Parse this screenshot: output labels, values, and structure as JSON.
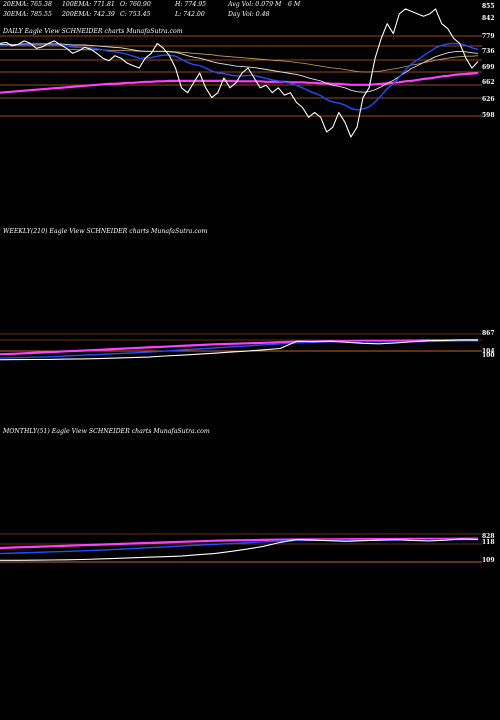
{
  "header": {
    "row1": [
      {
        "label": "20EMA: 765.38"
      },
      {
        "label": "100EMA: 771.81"
      },
      {
        "label": "O: 760.90"
      },
      {
        "label": "H: 774.95"
      },
      {
        "label": "Avg Vol: 0.079 M"
      }
    ],
    "row2": [
      {
        "label": "30EMA: 785.55"
      },
      {
        "label": "200EMA: 742.39"
      },
      {
        "label": "C: 753.45"
      },
      {
        "label": "L: 742.00"
      },
      {
        "label": "Day Vol: 0.48"
      }
    ],
    "row1_tail": "6  M",
    "watermark": "DAILY Eagle View SCHNEIDER charts MunafaSutra.com"
  },
  "colors": {
    "background": "#000000",
    "price": "#ffffff",
    "ema_fast": "#1f4fff",
    "ema_mid": "#e0e0e0",
    "ema_slow": "#c8a060",
    "ema_long": "#ff40ff",
    "level_line": "#c8602a"
  },
  "chart_data": [
    {
      "type": "line",
      "panel": "daily",
      "title": "",
      "y_ticks": [
        "855",
        "842",
        "779",
        "736",
        "699",
        "662",
        "626",
        "598"
      ],
      "ylim": [
        598,
        870
      ],
      "x": [
        0,
        1,
        2,
        3,
        4,
        5,
        6,
        7,
        8,
        9,
        10,
        11,
        12,
        13,
        14,
        15,
        16,
        17,
        18,
        19,
        20,
        21,
        22,
        23,
        24,
        25,
        26,
        27,
        28,
        29,
        30,
        31,
        32,
        33,
        34,
        35,
        36,
        37,
        38,
        39,
        40,
        41,
        42,
        43,
        44,
        45,
        46,
        47,
        48,
        49,
        50,
        51,
        52,
        53,
        54,
        55,
        56,
        57,
        58,
        59,
        60,
        61,
        62,
        63,
        64,
        65,
        66,
        67,
        68,
        69,
        70,
        71,
        72,
        73,
        74,
        75,
        76,
        77,
        78,
        79
      ],
      "series": [
        {
          "name": "",
          "key": "price",
          "values": [
            790,
            792,
            785,
            788,
            795,
            790,
            780,
            783,
            790,
            795,
            787,
            780,
            770,
            775,
            782,
            778,
            770,
            760,
            755,
            765,
            760,
            750,
            745,
            740,
            760,
            770,
            790,
            780,
            765,
            740,
            700,
            690,
            710,
            730,
            700,
            680,
            690,
            720,
            700,
            710,
            730,
            740,
            720,
            700,
            705,
            690,
            700,
            685,
            690,
            670,
            660,
            640,
            650,
            640,
            610,
            620,
            650,
            630,
            600,
            620,
            680,
            700,
            760,
            800,
            830,
            810,
            850,
            860,
            855,
            850,
            845,
            850,
            860,
            830,
            820,
            800,
            790,
            760,
            740,
            753
          ]
        },
        {
          "name": "",
          "key": "ema_fast",
          "values": [
            785,
            786,
            786,
            786,
            787,
            787,
            786,
            786,
            786,
            787,
            786,
            785,
            783,
            782,
            782,
            781,
            779,
            777,
            774,
            773,
            771,
            768,
            764,
            760,
            760,
            761,
            764,
            766,
            766,
            764,
            758,
            751,
            747,
            745,
            740,
            734,
            730,
            729,
            726,
            724,
            724,
            725,
            725,
            722,
            719,
            716,
            714,
            711,
            709,
            705,
            700,
            694,
            689,
            684,
            676,
            671,
            669,
            665,
            658,
            655,
            657,
            661,
            671,
            684,
            698,
            708,
            722,
            736,
            748,
            757,
            765,
            773,
            781,
            786,
            789,
            790,
            789,
            786,
            781,
            778
          ]
        },
        {
          "name": "",
          "key": "ema_mid",
          "values": [
            788,
            788,
            788,
            788,
            789,
            789,
            789,
            789,
            789,
            789,
            789,
            788,
            787,
            787,
            787,
            786,
            785,
            784,
            783,
            782,
            781,
            779,
            777,
            775,
            774,
            774,
            774,
            774,
            773,
            772,
            769,
            765,
            762,
            760,
            757,
            753,
            750,
            748,
            746,
            744,
            743,
            742,
            741,
            739,
            737,
            735,
            733,
            731,
            729,
            727,
            724,
            720,
            717,
            714,
            709,
            705,
            703,
            700,
            695,
            692,
            691,
            692,
            696,
            702,
            709,
            715,
            723,
            731,
            739,
            745,
            751,
            757,
            763,
            767,
            771,
            773,
            774,
            773,
            771,
            770
          ]
        },
        {
          "name": "",
          "key": "ema_slow",
          "values": [
            778,
            778,
            778,
            778,
            778,
            778,
            778,
            778,
            778,
            778,
            778,
            778,
            778,
            777,
            777,
            777,
            777,
            777,
            776,
            776,
            776,
            775,
            775,
            774,
            774,
            774,
            774,
            774,
            774,
            773,
            772,
            771,
            770,
            769,
            768,
            767,
            765,
            764,
            763,
            762,
            761,
            760,
            759,
            758,
            757,
            756,
            755,
            754,
            753,
            751,
            750,
            748,
            746,
            744,
            742,
            740,
            739,
            737,
            735,
            733,
            732,
            732,
            733,
            734,
            736,
            738,
            740,
            743,
            746,
            748,
            751,
            753,
            756,
            758,
            760,
            762,
            763,
            764,
            764,
            765
          ]
        },
        {
          "name": "",
          "key": "ema_long",
          "values": [
            690,
            691,
            692,
            693,
            694,
            695,
            696,
            697,
            698,
            699,
            700,
            701,
            702,
            703,
            704,
            705,
            706,
            707,
            708,
            708,
            709,
            710,
            710,
            711,
            712,
            712,
            713,
            713,
            714,
            714,
            714,
            714,
            714,
            714,
            714,
            714,
            714,
            714,
            714,
            713,
            713,
            713,
            713,
            713,
            712,
            712,
            712,
            712,
            711,
            711,
            711,
            710,
            710,
            709,
            709,
            708,
            708,
            707,
            706,
            706,
            706,
            706,
            707,
            708,
            709,
            710,
            711,
            713,
            714,
            716,
            718,
            719,
            721,
            723,
            724,
            726,
            727,
            728,
            729,
            730
          ]
        }
      ]
    },
    {
      "type": "line",
      "panel": "weekly",
      "title": "WEEKLY(210) Eagle  View  SCHNEIDER charts MunafaSutra.com",
      "y_ticks": [
        "867",
        "104",
        "100"
      ],
      "ylim": [
        0,
        1000
      ],
      "x": [
        0,
        1,
        2,
        3,
        4,
        5,
        6,
        7,
        8,
        9,
        10,
        11,
        12,
        13,
        14,
        15,
        16,
        17,
        18,
        19,
        20,
        21,
        22,
        23,
        24,
        25,
        26,
        27,
        28,
        29
      ],
      "series": [
        {
          "name": "",
          "key": "price",
          "values": [
            90,
            92,
            95,
            100,
            110,
            120,
            130,
            150,
            170,
            190,
            230,
            260,
            300,
            340,
            380,
            420,
            470,
            520,
            800,
            780,
            800,
            760,
            720,
            700,
            730,
            780,
            820,
            830,
            850,
            840
          ]
        },
        {
          "name": "",
          "key": "ema_fast",
          "values": [
            150,
            160,
            180,
            200,
            230,
            260,
            290,
            320,
            350,
            380,
            420,
            460,
            500,
            540,
            580,
            620,
            660,
            700,
            740,
            760,
            775,
            780,
            780,
            775,
            775,
            780,
            790,
            800,
            810,
            815
          ]
        },
        {
          "name": "",
          "key": "ema_long",
          "values": [
            300,
            320,
            350,
            380,
            410,
            440,
            470,
            500,
            530,
            560,
            590,
            620,
            650,
            680,
            700,
            720,
            740,
            760,
            780,
            790,
            800,
            805,
            810,
            815,
            820,
            825,
            830,
            835,
            840,
            845
          ]
        }
      ]
    },
    {
      "type": "line",
      "panel": "monthly",
      "title": "MONTHLY(51) Eagle  View  SCHNEIDER charts MunafaSutra.com",
      "y_ticks": [
        "828",
        "118",
        "109"
      ],
      "ylim": [
        0,
        1000
      ],
      "x": [
        0,
        1,
        2,
        3,
        4,
        5,
        6,
        7,
        8,
        9,
        10,
        11,
        12,
        13,
        14,
        15,
        16,
        17,
        18,
        19,
        20,
        21,
        22,
        23,
        24,
        25,
        26,
        27,
        28,
        29
      ],
      "series": [
        {
          "name": "",
          "key": "price",
          "values": [
            60,
            62,
            65,
            70,
            80,
            90,
            110,
            130,
            150,
            170,
            190,
            210,
            260,
            300,
            380,
            460,
            560,
            700,
            800,
            780,
            760,
            740,
            760,
            780,
            800,
            770,
            750,
            780,
            820,
            800
          ]
        },
        {
          "name": "",
          "key": "ema_fast",
          "values": [
            300,
            320,
            340,
            360,
            380,
            400,
            420,
            450,
            480,
            510,
            540,
            570,
            600,
            630,
            660,
            690,
            720,
            750,
            770,
            780,
            785,
            785,
            780,
            780,
            785,
            790,
            795,
            800,
            805,
            810
          ]
        },
        {
          "name": "",
          "key": "ema_long",
          "values": [
            500,
            520,
            540,
            560,
            580,
            600,
            620,
            640,
            660,
            680,
            700,
            720,
            740,
            760,
            770,
            780,
            790,
            800,
            805,
            810,
            812,
            815,
            818,
            820,
            822,
            825,
            828,
            830,
            832,
            835
          ]
        }
      ]
    }
  ]
}
